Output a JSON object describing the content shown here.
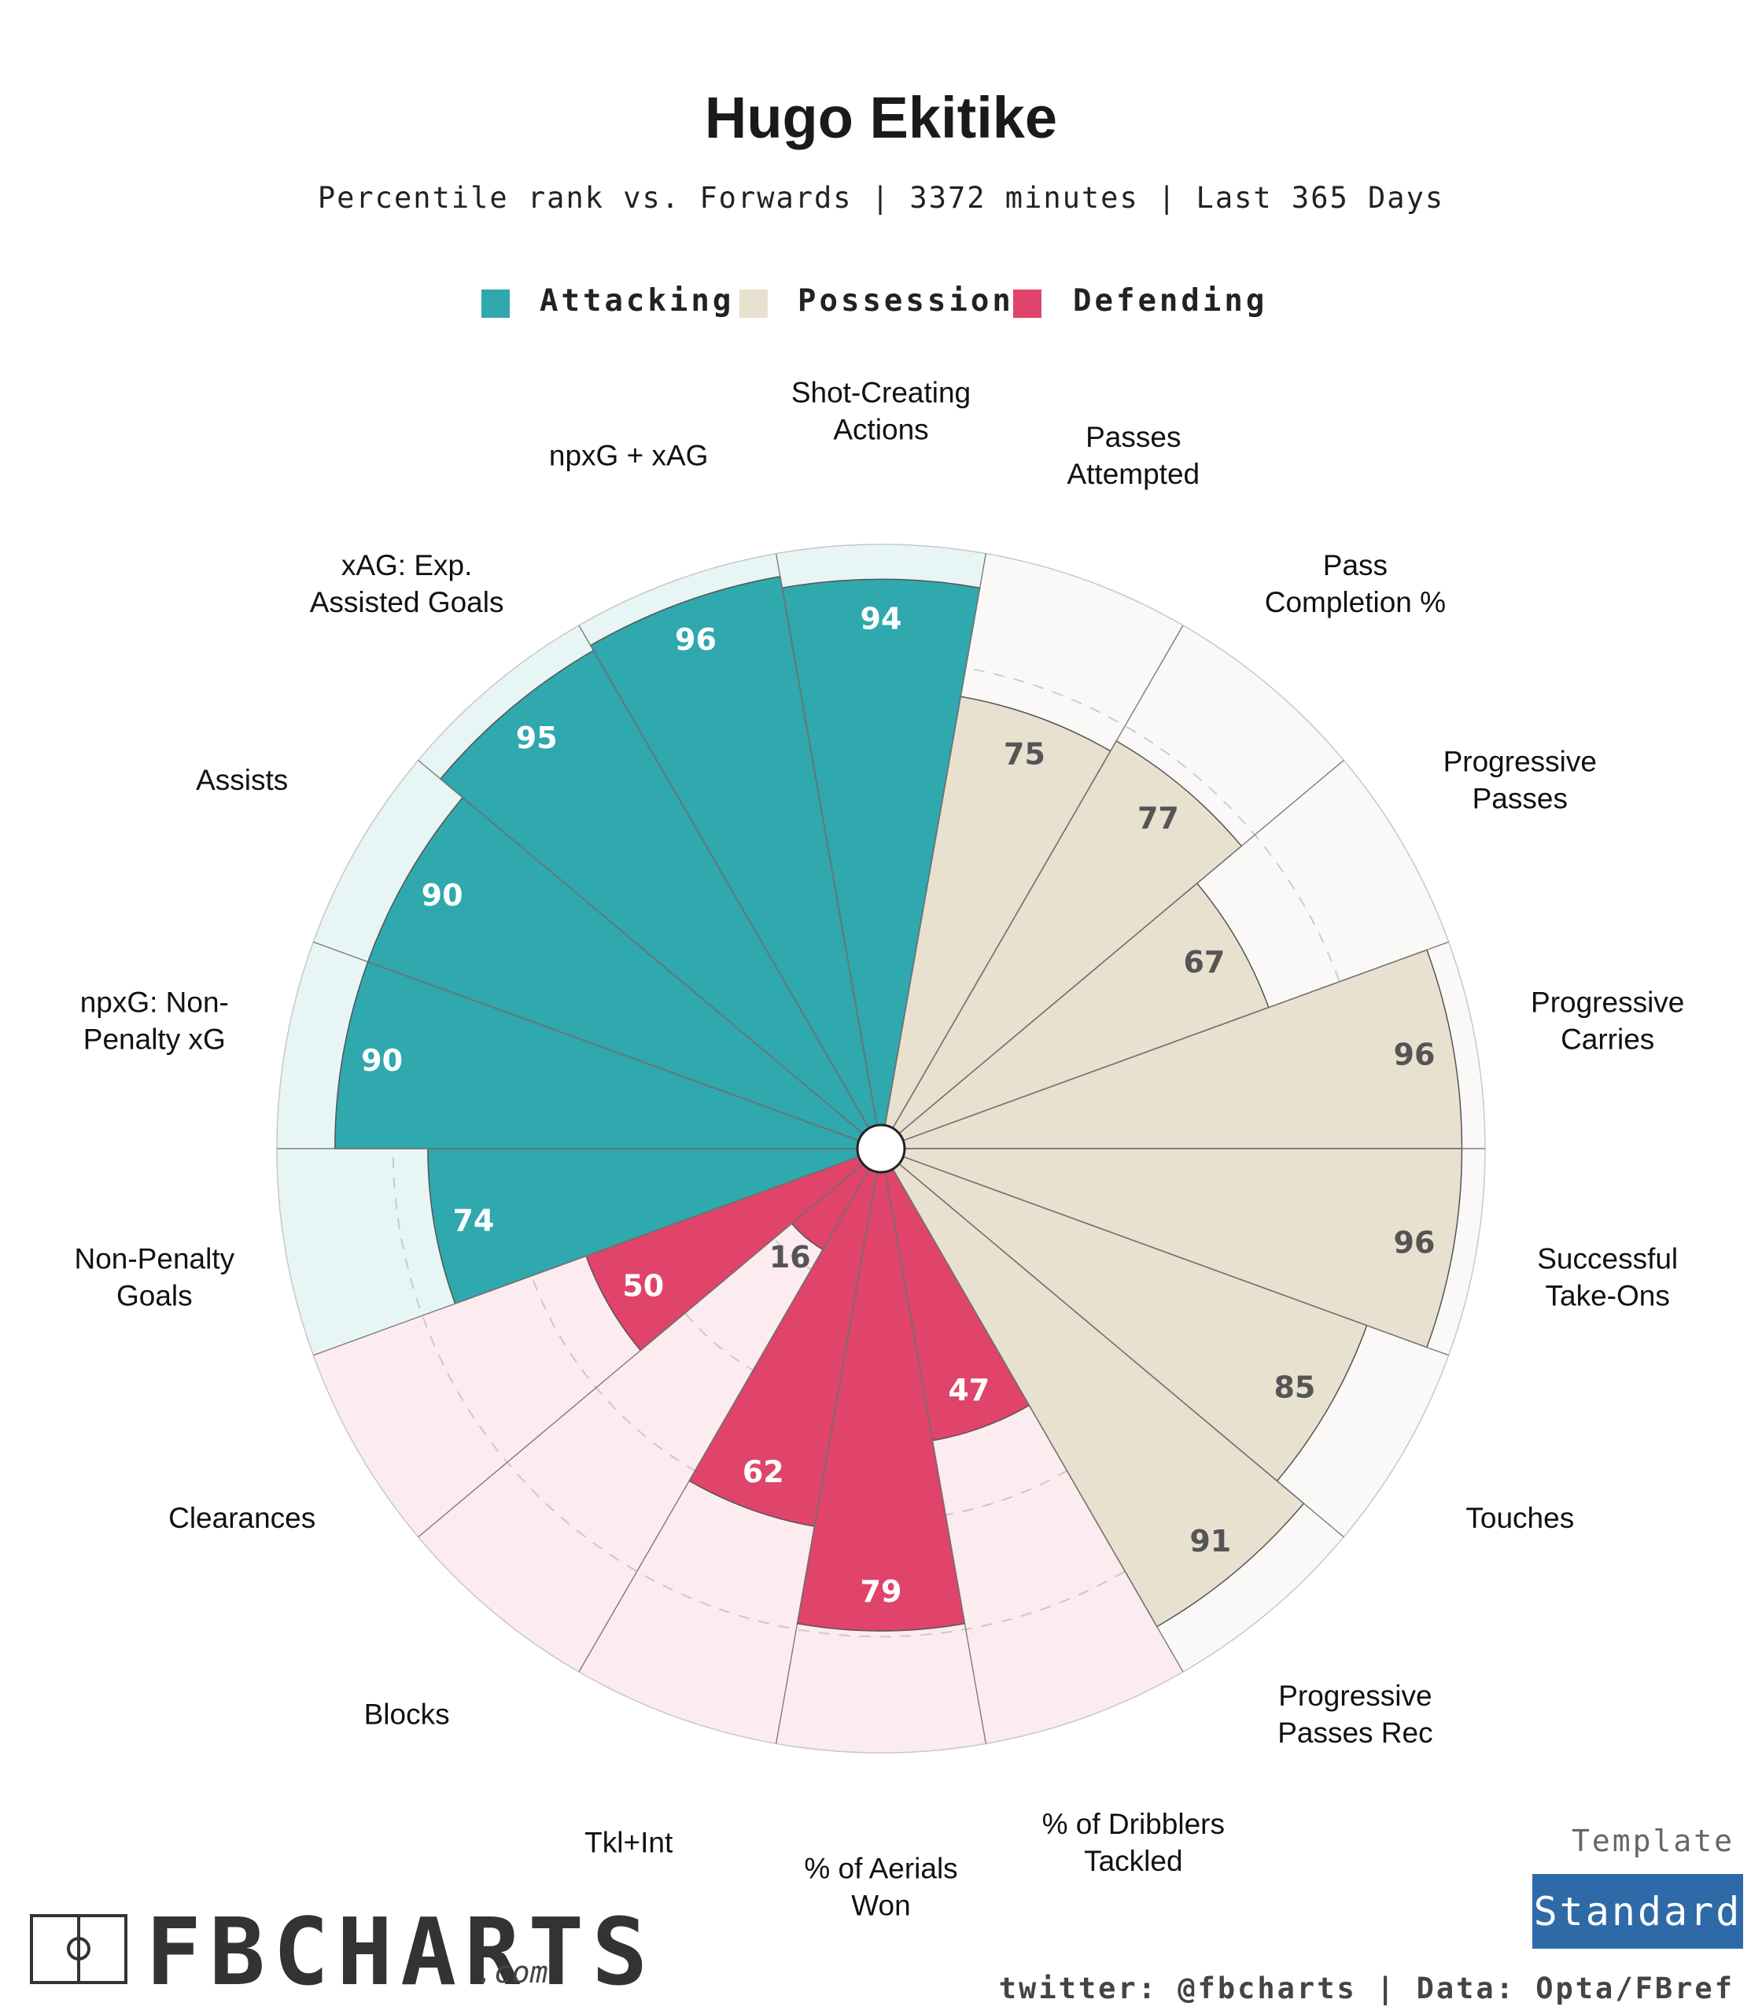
{
  "header": {
    "title": "Hugo Ekitike",
    "subtitle": "Percentile rank vs. Forwards | 3372 minutes | Last 365 Days"
  },
  "legend": [
    {
      "label": "Attacking",
      "color": "#2fa8ae"
    },
    {
      "label": "Possession",
      "color": "#e8e1d0"
    },
    {
      "label": "Defending",
      "color": "#e0446a"
    }
  ],
  "colors": {
    "attacking": "#2fa8ae",
    "attacking_bg": "#e8f5f5",
    "possession": "#e8e1d0",
    "possession_bg": "#faf9f7",
    "defending": "#e0446a",
    "defending_bg": "#fcebef",
    "badge": "#2f6aa8"
  },
  "chart_data": {
    "type": "pie",
    "subtype": "radar-pizza",
    "title": "Hugo Ekitike",
    "value_range": [
      0,
      100
    ],
    "metrics": [
      {
        "label": "Shot-Creating Actions",
        "value": 94,
        "category": "Attacking"
      },
      {
        "label": "Passes Attempted",
        "value": 75,
        "category": "Possession"
      },
      {
        "label": "Pass Completion %",
        "value": 77,
        "category": "Possession"
      },
      {
        "label": "Progressive Passes",
        "value": 67,
        "category": "Possession"
      },
      {
        "label": "Progressive Carries",
        "value": 96,
        "category": "Possession"
      },
      {
        "label": "Successful Take-Ons",
        "value": 96,
        "category": "Possession"
      },
      {
        "label": "Touches",
        "value": 85,
        "category": "Possession"
      },
      {
        "label": "Progressive Passes Rec",
        "value": 91,
        "category": "Possession"
      },
      {
        "label": "% of Dribblers Tackled",
        "value": 47,
        "category": "Defending"
      },
      {
        "label": "% of Aerials Won",
        "value": 79,
        "category": "Defending"
      },
      {
        "label": "Tkl+Int",
        "value": 62,
        "category": "Defending"
      },
      {
        "label": "Blocks",
        "value": 16,
        "category": "Defending"
      },
      {
        "label": "Clearances",
        "value": 50,
        "category": "Defending"
      },
      {
        "label": "Non-Penalty Goals",
        "value": 74,
        "category": "Attacking"
      },
      {
        "label": "npxG: Non-Penalty xG",
        "value": 90,
        "category": "Attacking"
      },
      {
        "label": "Assists",
        "value": 90,
        "category": "Attacking"
      },
      {
        "label": "xAG: Exp. Assisted Goals",
        "value": 95,
        "category": "Attacking"
      },
      {
        "label": "npxG + xAG",
        "value": 96,
        "category": "Attacking"
      }
    ],
    "metric_label_lines": [
      [
        "Shot-Creating",
        "Actions"
      ],
      [
        "Passes",
        "Attempted"
      ],
      [
        "Pass",
        "Completion %"
      ],
      [
        "Progressive",
        "Passes"
      ],
      [
        "Progressive",
        "Carries"
      ],
      [
        "Successful",
        "Take-Ons"
      ],
      [
        "Touches"
      ],
      [
        "Progressive",
        "Passes Rec"
      ],
      [
        "% of Dribblers",
        "Tackled"
      ],
      [
        "% of Aerials",
        "Won"
      ],
      [
        "Tkl+Int"
      ],
      [
        "Blocks"
      ],
      [
        "Clearances"
      ],
      [
        "Non-Penalty",
        "Goals"
      ],
      [
        "npxG: Non-",
        "Penalty xG"
      ],
      [
        "Assists"
      ],
      [
        "xAG: Exp.",
        "Assisted Goals"
      ],
      [
        "npxG + xAG"
      ]
    ],
    "gridlines": [
      20,
      40,
      60,
      80
    ]
  },
  "footer": {
    "brand": "FBCHARTS",
    "brand_suffix": ".com",
    "template_label": "Template",
    "template_value": "Standard",
    "credit": "twitter: @fbcharts | Data: Opta/FBref"
  }
}
